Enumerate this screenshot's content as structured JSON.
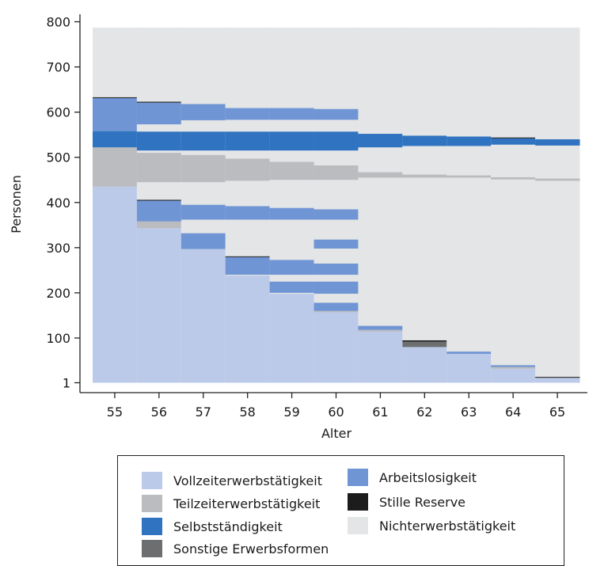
{
  "chart_data": {
    "type": "sequence-index",
    "xlabel": "Alter",
    "ylabel": "Personen",
    "x_categories": [
      "55",
      "56",
      "57",
      "58",
      "59",
      "60",
      "61",
      "62",
      "63",
      "64",
      "65"
    ],
    "y_ticks": [
      1,
      100,
      200,
      300,
      400,
      500,
      600,
      700,
      800
    ],
    "ylim": [
      0,
      820
    ],
    "total_persons": 787,
    "states": [
      {
        "name": "Vollzeiterwerbstätigkeit",
        "color": "#bccae9"
      },
      {
        "name": "Teilzeiterwerbstätigkeit",
        "color": "#bbbcbf"
      },
      {
        "name": "Selbstständigkeit",
        "color": "#2f73c1"
      },
      {
        "name": "Sonstige Erwerbsformen",
        "color": "#6d6e70"
      },
      {
        "name": "Arbeitslosigkeit",
        "color": "#6f95d4"
      },
      {
        "name": "Stille Reserve",
        "color": "#1c1c1c"
      },
      {
        "name": "Nichterwerbstätigkeit",
        "color": "#e4e5e6"
      }
    ],
    "age_bands": [
      {
        "age": "55",
        "bands": [
          {
            "state": "Vollzeiterwerbstätigkeit",
            "from": 1,
            "to": 435
          },
          {
            "state": "Teilzeiterwerbstätigkeit",
            "from": 435,
            "to": 522
          },
          {
            "state": "Selbstständigkeit",
            "from": 522,
            "to": 558
          },
          {
            "state": "Arbeitslosigkeit",
            "from": 558,
            "to": 631
          },
          {
            "state": "Stille Reserve",
            "from": 631,
            "to": 633
          },
          {
            "state": "Nichterwerbstätigkeit",
            "from": 633,
            "to": 787
          }
        ]
      },
      {
        "age": "56",
        "bands": [
          {
            "state": "Vollzeiterwerbstätigkeit",
            "from": 1,
            "to": 343
          },
          {
            "state": "Teilzeiterwerbstätigkeit",
            "from": 343,
            "to": 358
          },
          {
            "state": "Arbeitslosigkeit",
            "from": 358,
            "to": 404
          },
          {
            "state": "Stille Reserve",
            "from": 404,
            "to": 406
          },
          {
            "state": "Nichterwerbstätigkeit",
            "from": 406,
            "to": 445
          },
          {
            "state": "Teilzeiterwerbstätigkeit",
            "from": 445,
            "to": 510
          },
          {
            "state": "Selbstständigkeit",
            "from": 515,
            "to": 557
          },
          {
            "state": "Nichterwerbstätigkeit",
            "from": 557,
            "to": 573
          },
          {
            "state": "Arbeitslosigkeit",
            "from": 573,
            "to": 621
          },
          {
            "state": "Stille Reserve",
            "from": 621,
            "to": 623
          },
          {
            "state": "Nichterwerbstätigkeit",
            "from": 623,
            "to": 787
          }
        ]
      },
      {
        "age": "57",
        "bands": [
          {
            "state": "Vollzeiterwerbstätigkeit",
            "from": 1,
            "to": 297
          },
          {
            "state": "Arbeitslosigkeit",
            "from": 297,
            "to": 332
          },
          {
            "state": "Nichterwerbstätigkeit",
            "from": 332,
            "to": 358
          },
          {
            "state": "Arbeitslosigkeit",
            "from": 362,
            "to": 395
          },
          {
            "state": "Nichterwerbstätigkeit",
            "from": 395,
            "to": 445
          },
          {
            "state": "Teilzeiterwerbstätigkeit",
            "from": 445,
            "to": 505
          },
          {
            "state": "Selbstständigkeit",
            "from": 515,
            "to": 557
          },
          {
            "state": "Nichterwerbstätigkeit",
            "from": 557,
            "to": 578
          },
          {
            "state": "Arbeitslosigkeit",
            "from": 582,
            "to": 618
          },
          {
            "state": "Nichterwerbstätigkeit",
            "from": 618,
            "to": 787
          }
        ]
      },
      {
        "age": "58",
        "bands": [
          {
            "state": "Vollzeiterwerbstätigkeit",
            "from": 1,
            "to": 238
          },
          {
            "state": "Arbeitslosigkeit",
            "from": 240,
            "to": 279
          },
          {
            "state": "Stille Reserve",
            "from": 279,
            "to": 281
          },
          {
            "state": "Nichterwerbstätigkeit",
            "from": 281,
            "to": 358
          },
          {
            "state": "Arbeitslosigkeit",
            "from": 362,
            "to": 392
          },
          {
            "state": "Nichterwerbstätigkeit",
            "from": 392,
            "to": 440
          },
          {
            "state": "Teilzeiterwerbstätigkeit",
            "from": 448,
            "to": 497
          },
          {
            "state": "Selbstständigkeit",
            "from": 515,
            "to": 557
          },
          {
            "state": "Nichterwerbstätigkeit",
            "from": 557,
            "to": 583
          },
          {
            "state": "Arbeitslosigkeit",
            "from": 583,
            "to": 609
          },
          {
            "state": "Nichterwerbstätigkeit",
            "from": 609,
            "to": 787
          }
        ]
      },
      {
        "age": "59",
        "bands": [
          {
            "state": "Vollzeiterwerbstätigkeit",
            "from": 1,
            "to": 198
          },
          {
            "state": "Arbeitslosigkeit",
            "from": 200,
            "to": 225
          },
          {
            "state": "Nichterwerbstätigkeit",
            "from": 225,
            "to": 238
          },
          {
            "state": "Arbeitslosigkeit",
            "from": 240,
            "to": 273
          },
          {
            "state": "Nichterwerbstätigkeit",
            "from": 273,
            "to": 358
          },
          {
            "state": "Arbeitslosigkeit",
            "from": 362,
            "to": 388
          },
          {
            "state": "Nichterwerbstätigkeit",
            "from": 388,
            "to": 440
          },
          {
            "state": "Teilzeiterwerbstätigkeit",
            "from": 450,
            "to": 490
          },
          {
            "state": "Selbstständigkeit",
            "from": 515,
            "to": 557
          },
          {
            "state": "Nichterwerbstätigkeit",
            "from": 557,
            "to": 583
          },
          {
            "state": "Arbeitslosigkeit",
            "from": 583,
            "to": 609
          },
          {
            "state": "Nichterwerbstätigkeit",
            "from": 609,
            "to": 787
          }
        ]
      },
      {
        "age": "60",
        "bands": [
          {
            "state": "Vollzeiterwerbstätigkeit",
            "from": 1,
            "to": 157
          },
          {
            "state": "Teilzeiterwerbstätigkeit",
            "from": 157,
            "to": 160
          },
          {
            "state": "Arbeitslosigkeit",
            "from": 160,
            "to": 178
          },
          {
            "state": "Nichterwerbstätigkeit",
            "from": 178,
            "to": 198
          },
          {
            "state": "Arbeitslosigkeit",
            "from": 198,
            "to": 225
          },
          {
            "state": "Nichterwerbstätigkeit",
            "from": 225,
            "to": 240
          },
          {
            "state": "Arbeitslosigkeit",
            "from": 240,
            "to": 265
          },
          {
            "state": "Nichterwerbstätigkeit",
            "from": 265,
            "to": 298
          },
          {
            "state": "Arbeitslosigkeit",
            "from": 298,
            "to": 318
          },
          {
            "state": "Nichterwerbstätigkeit",
            "from": 318,
            "to": 358
          },
          {
            "state": "Arbeitslosigkeit",
            "from": 362,
            "to": 385
          },
          {
            "state": "Nichterwerbstätigkeit",
            "from": 385,
            "to": 440
          },
          {
            "state": "Teilzeiterwerbstätigkeit",
            "from": 450,
            "to": 482
          },
          {
            "state": "Selbstständigkeit",
            "from": 515,
            "to": 557
          },
          {
            "state": "Nichterwerbstätigkeit",
            "from": 557,
            "to": 583
          },
          {
            "state": "Arbeitslosigkeit",
            "from": 583,
            "to": 607
          },
          {
            "state": "Nichterwerbstätigkeit",
            "from": 607,
            "to": 787
          }
        ]
      },
      {
        "age": "61",
        "bands": [
          {
            "state": "Vollzeiterwerbstätigkeit",
            "from": 1,
            "to": 114
          },
          {
            "state": "Teilzeiterwerbstätigkeit",
            "from": 114,
            "to": 118
          },
          {
            "state": "Arbeitslosigkeit",
            "from": 118,
            "to": 127
          },
          {
            "state": "Nichterwerbstätigkeit",
            "from": 127,
            "to": 455
          },
          {
            "state": "Teilzeiterwerbstätigkeit",
            "from": 455,
            "to": 467
          },
          {
            "state": "Nichterwerbstätigkeit",
            "from": 467,
            "to": 522
          },
          {
            "state": "Selbstständigkeit",
            "from": 522,
            "to": 552
          },
          {
            "state": "Nichterwerbstätigkeit",
            "from": 552,
            "to": 787
          }
        ]
      },
      {
        "age": "62",
        "bands": [
          {
            "state": "Vollzeiterwerbstätigkeit",
            "from": 1,
            "to": 80
          },
          {
            "state": "Sonstige Erwerbsformen",
            "from": 80,
            "to": 92
          },
          {
            "state": "Stille Reserve",
            "from": 92,
            "to": 95
          },
          {
            "state": "Nichterwerbstätigkeit",
            "from": 95,
            "to": 455
          },
          {
            "state": "Teilzeiterwerbstätigkeit",
            "from": 455,
            "to": 462
          },
          {
            "state": "Nichterwerbstätigkeit",
            "from": 462,
            "to": 525
          },
          {
            "state": "Selbstständigkeit",
            "from": 525,
            "to": 548
          },
          {
            "state": "Nichterwerbstätigkeit",
            "from": 548,
            "to": 787
          }
        ]
      },
      {
        "age": "63",
        "bands": [
          {
            "state": "Vollzeiterwerbstätigkeit",
            "from": 1,
            "to": 65
          },
          {
            "state": "Arbeitslosigkeit",
            "from": 65,
            "to": 70
          },
          {
            "state": "Nichterwerbstätigkeit",
            "from": 70,
            "to": 455
          },
          {
            "state": "Teilzeiterwerbstätigkeit",
            "from": 455,
            "to": 460
          },
          {
            "state": "Nichterwerbstätigkeit",
            "from": 460,
            "to": 525
          },
          {
            "state": "Selbstständigkeit",
            "from": 525,
            "to": 546
          },
          {
            "state": "Nichterwerbstätigkeit",
            "from": 546,
            "to": 787
          }
        ]
      },
      {
        "age": "64",
        "bands": [
          {
            "state": "Vollzeiterwerbstätigkeit",
            "from": 1,
            "to": 32
          },
          {
            "state": "Teilzeiterwerbstätigkeit",
            "from": 32,
            "to": 36
          },
          {
            "state": "Arbeitslosigkeit",
            "from": 36,
            "to": 40
          },
          {
            "state": "Nichterwerbstätigkeit",
            "from": 40,
            "to": 451
          },
          {
            "state": "Teilzeiterwerbstätigkeit",
            "from": 451,
            "to": 456
          },
          {
            "state": "Nichterwerbstätigkeit",
            "from": 456,
            "to": 528
          },
          {
            "state": "Selbstständigkeit",
            "from": 528,
            "to": 542
          },
          {
            "state": "Stille Reserve",
            "from": 542,
            "to": 544
          },
          {
            "state": "Nichterwerbstätigkeit",
            "from": 544,
            "to": 787
          }
        ]
      },
      {
        "age": "65",
        "bands": [
          {
            "state": "Vollzeiterwerbstätigkeit",
            "from": 1,
            "to": 12
          },
          {
            "state": "Stille Reserve",
            "from": 12,
            "to": 14
          },
          {
            "state": "Nichterwerbstätigkeit",
            "from": 14,
            "to": 448
          },
          {
            "state": "Teilzeiterwerbstätigkeit",
            "from": 448,
            "to": 453
          },
          {
            "state": "Nichterwerbstätigkeit",
            "from": 453,
            "to": 526
          },
          {
            "state": "Selbstständigkeit",
            "from": 526,
            "to": 540
          },
          {
            "state": "Nichterwerbstätigkeit",
            "from": 540,
            "to": 787
          }
        ]
      }
    ],
    "legend": {
      "placement": "bottom",
      "entries": [
        "Vollzeiterwerbstätigkeit",
        "Teilzeiterwerbstätigkeit",
        "Selbstständigkeit",
        "Sonstige Erwerbsformen",
        "Arbeitslosigkeit",
        "Stille Reserve",
        "Nichterwerbstätigkeit"
      ]
    }
  }
}
